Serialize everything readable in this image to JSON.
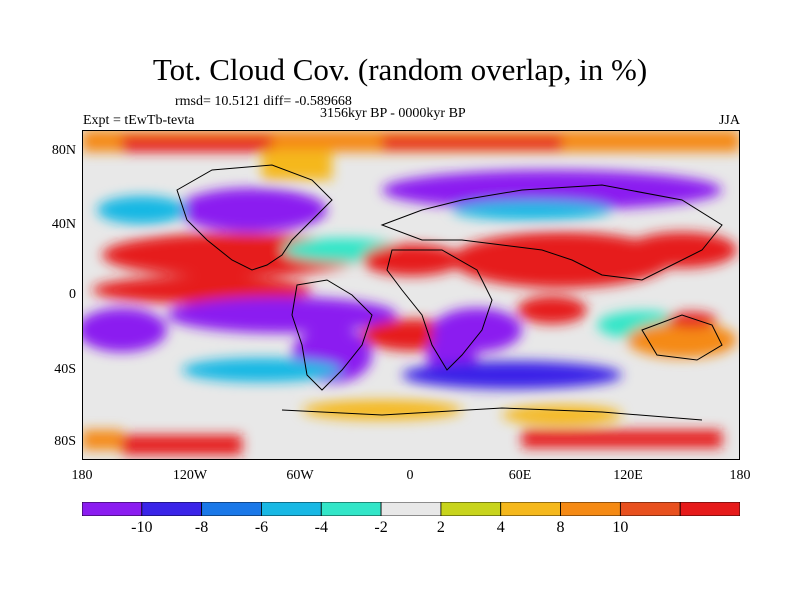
{
  "title": "Tot. Cloud Cov. (random overlap, in %)",
  "stats": "rmsd= 10.5121 diff= -0.589668",
  "period": "3156kyr BP - 0000kyr BP",
  "experiment": "Expt = tEwTb-tevta",
  "season": "JJA",
  "lat_labels": [
    "80N",
    "40N",
    "0",
    "40S",
    "80S"
  ],
  "lon_labels": [
    "180",
    "120W",
    "60W",
    "0",
    "60E",
    "120E",
    "180"
  ],
  "colorbar": {
    "labels": [
      "-10",
      "-8",
      "-6",
      "-4",
      "-2",
      "2",
      "4",
      "8",
      "10"
    ],
    "colors": [
      "#8b1cf0",
      "#3a24e8",
      "#1a78e8",
      "#18b8e4",
      "#32e6c8",
      "#e8e8e8",
      "#c8d41c",
      "#f5b81c",
      "#f58a14",
      "#e8501e",
      "#e61a1a"
    ]
  }
}
